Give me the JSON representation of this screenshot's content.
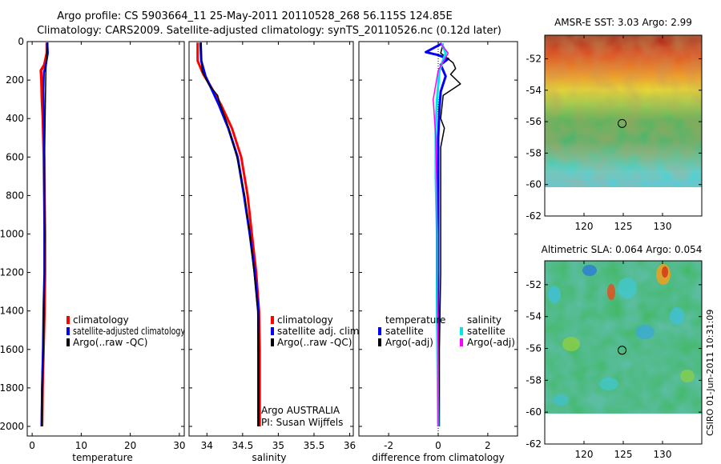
{
  "header": {
    "title_line1": "Argo profile: CS 5903664_11 25-May-2011 20110528_268 56.115S 124.85E",
    "title_line2": "Climatology: CARS2009. Satellite-adjusted climatology: synTS_20110526.nc (0.12d later)"
  },
  "colors": {
    "climatology": "#ff0000",
    "satellite": "#0000ff",
    "argo": "#000000",
    "salinity_satellite": "#00e5e5",
    "salinity_argo": "#ff00ff"
  },
  "chart_data": [
    {
      "id": "temperature",
      "type": "line",
      "xlabel": "temperature",
      "xlim": [
        -1,
        31
      ],
      "ylim": [
        0,
        2050
      ],
      "y_inverted": true,
      "xticks": [
        "0",
        "10",
        "20",
        "30"
      ],
      "yticks": [
        "0",
        "200",
        "400",
        "600",
        "800",
        "1000",
        "1200",
        "1400",
        "1600",
        "1800",
        "2000"
      ],
      "series": [
        {
          "name": "climatology",
          "color": "#ff0000",
          "width": 3.5,
          "points": [
            [
              3.0,
              5
            ],
            [
              3.0,
              60
            ],
            [
              2.5,
              120
            ],
            [
              1.8,
              150
            ],
            [
              1.9,
              200
            ],
            [
              2.0,
              300
            ],
            [
              2.2,
              400
            ],
            [
              2.4,
              600
            ],
            [
              2.5,
              800
            ],
            [
              2.6,
              1000
            ],
            [
              2.6,
              1200
            ],
            [
              2.5,
              1400
            ],
            [
              2.3,
              1600
            ],
            [
              2.1,
              1800
            ],
            [
              2.0,
              2000
            ]
          ]
        },
        {
          "name": "satellite-adjusted climatology",
          "color": "#0000ff",
          "width": 2.5,
          "points": [
            [
              3.1,
              5
            ],
            [
              3.2,
              60
            ],
            [
              2.8,
              120
            ],
            [
              2.4,
              160
            ],
            [
              2.3,
              250
            ],
            [
              2.4,
              400
            ],
            [
              2.5,
              600
            ],
            [
              2.5,
              800
            ],
            [
              2.5,
              1000
            ],
            [
              2.5,
              1200
            ],
            [
              2.3,
              1400
            ],
            [
              2.2,
              1600
            ],
            [
              2.0,
              1800
            ],
            [
              1.9,
              2000
            ]
          ]
        },
        {
          "name": "Argo(..raw -QC)",
          "color": "#000000",
          "width": 1.5,
          "points": [
            [
              3.2,
              5
            ],
            [
              3.0,
              60
            ],
            [
              2.8,
              150
            ],
            [
              2.7,
              300
            ],
            [
              2.6,
              500
            ],
            [
              2.5,
              700
            ],
            [
              2.6,
              1000
            ],
            [
              2.5,
              1300
            ],
            [
              2.3,
              1600
            ],
            [
              2.1,
              1800
            ],
            [
              2.0,
              2000
            ]
          ]
        }
      ],
      "legend": [
        "climatology",
        "satellite-adjusted climatology",
        "Argo(..raw -QC)"
      ]
    },
    {
      "id": "salinity",
      "type": "line",
      "xlabel": "salinity",
      "xlim": [
        33.75,
        36.05
      ],
      "ylim": [
        0,
        2050
      ],
      "y_inverted": true,
      "xticks": [
        "34",
        "34.5",
        "35",
        "35.5",
        "36"
      ],
      "series": [
        {
          "name": "climatology",
          "color": "#ff0000",
          "width": 3,
          "points": [
            [
              33.87,
              5
            ],
            [
              33.87,
              100
            ],
            [
              33.95,
              170
            ],
            [
              34.05,
              230
            ],
            [
              34.2,
              330
            ],
            [
              34.35,
              450
            ],
            [
              34.48,
              600
            ],
            [
              34.57,
              800
            ],
            [
              34.63,
              1000
            ],
            [
              34.69,
              1200
            ],
            [
              34.73,
              1400
            ],
            [
              34.74,
              1600
            ],
            [
              34.74,
              1800
            ],
            [
              34.74,
              2000
            ]
          ]
        },
        {
          "name": "satellite adj. clim.",
          "color": "#0000ff",
          "width": 3,
          "points": [
            [
              33.91,
              5
            ],
            [
              33.92,
              100
            ],
            [
              33.98,
              180
            ],
            [
              34.07,
              250
            ],
            [
              34.17,
              330
            ],
            [
              34.3,
              450
            ],
            [
              34.43,
              600
            ],
            [
              34.52,
              800
            ],
            [
              34.6,
              1000
            ],
            [
              34.67,
              1200
            ],
            [
              34.72,
              1400
            ],
            [
              34.72,
              1600
            ],
            [
              34.72,
              1800
            ],
            [
              34.72,
              2000
            ]
          ]
        },
        {
          "name": "Argo(..raw -QC)",
          "color": "#000000",
          "width": 1.5,
          "points": [
            [
              33.92,
              5
            ],
            [
              33.93,
              150
            ],
            [
              34.02,
              220
            ],
            [
              34.15,
              280
            ],
            [
              34.18,
              320
            ],
            [
              34.28,
              420
            ],
            [
              34.42,
              600
            ],
            [
              34.53,
              800
            ],
            [
              34.6,
              1000
            ],
            [
              34.66,
              1200
            ],
            [
              34.71,
              1400
            ],
            [
              34.72,
              1600
            ],
            [
              34.72,
              1800
            ],
            [
              34.72,
              2000
            ]
          ]
        }
      ],
      "legend": [
        "climatology",
        "satellite adj. clim.",
        "Argo(..raw -QC)"
      ],
      "annotation_line1": "Argo AUSTRALIA",
      "annotation_line2": "PI: Susan Wijffels"
    },
    {
      "id": "difference",
      "type": "line",
      "xlabel": "difference from climatology",
      "xlim": [
        -3.2,
        3.2
      ],
      "ylim": [
        0,
        2050
      ],
      "y_inverted": true,
      "xticks": [
        "-2",
        "0",
        "2"
      ],
      "series": [
        {
          "name": "temperature satellite",
          "color": "#0000ff",
          "width": 3,
          "points": [
            [
              0.15,
              10
            ],
            [
              -0.5,
              55
            ],
            [
              0.0,
              70
            ],
            [
              0.4,
              90
            ],
            [
              0.1,
              120
            ],
            [
              0.3,
              180
            ],
            [
              0.1,
              260
            ],
            [
              0.05,
              350
            ],
            [
              0.0,
              500
            ],
            [
              0.0,
              800
            ],
            [
              0.0,
              1200
            ],
            [
              0.0,
              1600
            ],
            [
              0.0,
              2000
            ]
          ]
        },
        {
          "name": "temperature Argo(-adj)",
          "color": "#000000",
          "width": 1.5,
          "points": [
            [
              0.2,
              10
            ],
            [
              0.1,
              60
            ],
            [
              0.6,
              110
            ],
            [
              0.7,
              140
            ],
            [
              0.5,
              170
            ],
            [
              0.9,
              220
            ],
            [
              0.2,
              280
            ],
            [
              0.1,
              400
            ],
            [
              0.25,
              450
            ],
            [
              0.1,
              550
            ],
            [
              0.1,
              800
            ],
            [
              0.1,
              1200
            ],
            [
              0.05,
              1600
            ],
            [
              0.05,
              2000
            ]
          ]
        },
        {
          "name": "salinity satellite",
          "color": "#00e5e5",
          "width": 3,
          "points": [
            [
              0.15,
              10
            ],
            [
              0.3,
              60
            ],
            [
              0.05,
              150
            ],
            [
              -0.05,
              300
            ],
            [
              -0.1,
              450
            ],
            [
              -0.1,
              700
            ],
            [
              -0.05,
              1000
            ],
            [
              -0.05,
              1400
            ],
            [
              0.0,
              2000
            ]
          ]
        },
        {
          "name": "salinity Argo(-adj)",
          "color": "#ff00ff",
          "width": 1.5,
          "points": [
            [
              0.1,
              10
            ],
            [
              0.4,
              60
            ],
            [
              0.0,
              150
            ],
            [
              -0.2,
              300
            ],
            [
              -0.1,
              500
            ],
            [
              -0.05,
              800
            ],
            [
              -0.05,
              1200
            ],
            [
              0.0,
              1600
            ],
            [
              0.0,
              2000
            ]
          ]
        }
      ],
      "legend_col1_title": "temperature",
      "legend_col2_title": "salinity",
      "legend_col1": [
        "satellite",
        "Argo(-adj)"
      ],
      "legend_col2": [
        "satellite",
        "Argo(-adj)"
      ]
    },
    {
      "id": "sst_map",
      "type": "heatmap",
      "title": "AMSR-E SST: 3.03 Argo: 2.99",
      "xlim": [
        115,
        135
      ],
      "ylim": [
        -62,
        -50.5
      ],
      "xticks": [
        "120",
        "125",
        "130"
      ],
      "yticks": [
        "-52",
        "-54",
        "-56",
        "-58",
        "-60",
        "-62"
      ],
      "data_extent_lat": [
        -60,
        -50.5
      ],
      "argo_position": [
        124.85,
        -56.115
      ]
    },
    {
      "id": "sla_map",
      "type": "heatmap",
      "title": "Altimetric SLA: 0.064 Argo: 0.054",
      "xlim": [
        115,
        135
      ],
      "ylim": [
        -62,
        -50.5
      ],
      "xticks": [
        "120",
        "125",
        "130"
      ],
      "yticks": [
        "-52",
        "-54",
        "-56",
        "-58",
        "-60",
        "-62"
      ],
      "data_extent_lat": [
        -60,
        -50.5
      ],
      "argo_position": [
        124.85,
        -56.115
      ]
    }
  ],
  "footer": {
    "stamp": "CSIRO 01-Jun-2011 10:31:09"
  }
}
